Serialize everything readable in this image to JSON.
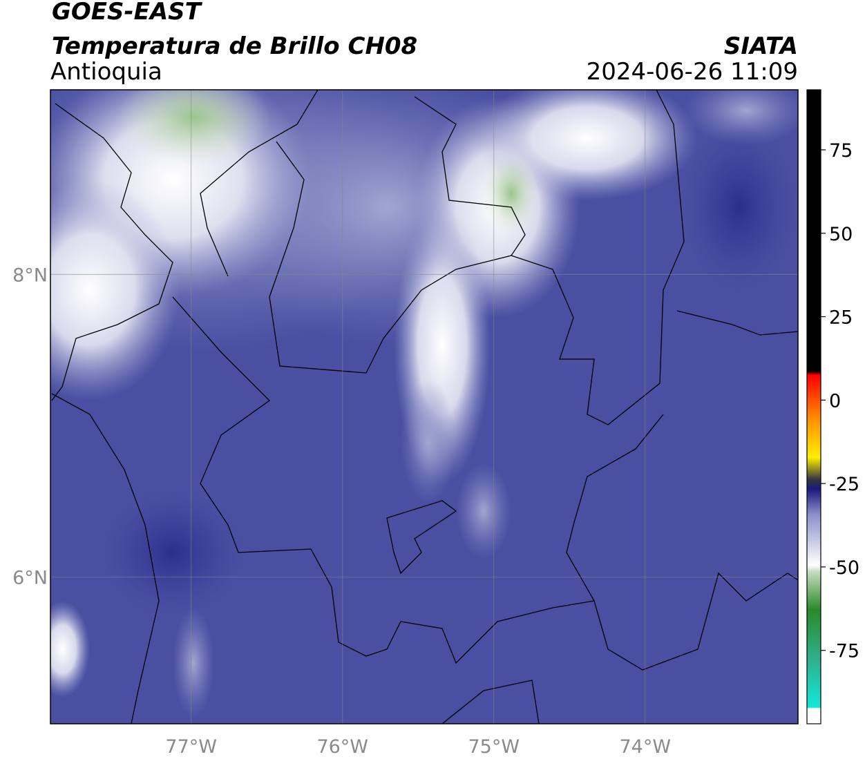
{
  "header": {
    "title": "GOES-EAST",
    "subtitle": "Temperatura de Brillo CH08",
    "region": "Antioquia",
    "source": "SIATA",
    "timestamp": "2024-06-26 11:09"
  },
  "map": {
    "lonlim": [
      -77.93,
      -72.99
    ],
    "latlim": [
      5.03,
      9.22
    ],
    "lon_ticks": [
      {
        "value": -77,
        "label": "77°W"
      },
      {
        "value": -76,
        "label": "76°W"
      },
      {
        "value": -75,
        "label": "75°W"
      },
      {
        "value": -74,
        "label": "74°W"
      }
    ],
    "lat_ticks": [
      {
        "value": 8,
        "label": "8°N"
      },
      {
        "value": 6,
        "label": "6°N"
      }
    ],
    "grid": true
  },
  "colorbar": {
    "lim": [
      -97,
      93
    ],
    "ticks": [
      75,
      50,
      25,
      0,
      -25,
      -50,
      -75
    ]
  }
}
